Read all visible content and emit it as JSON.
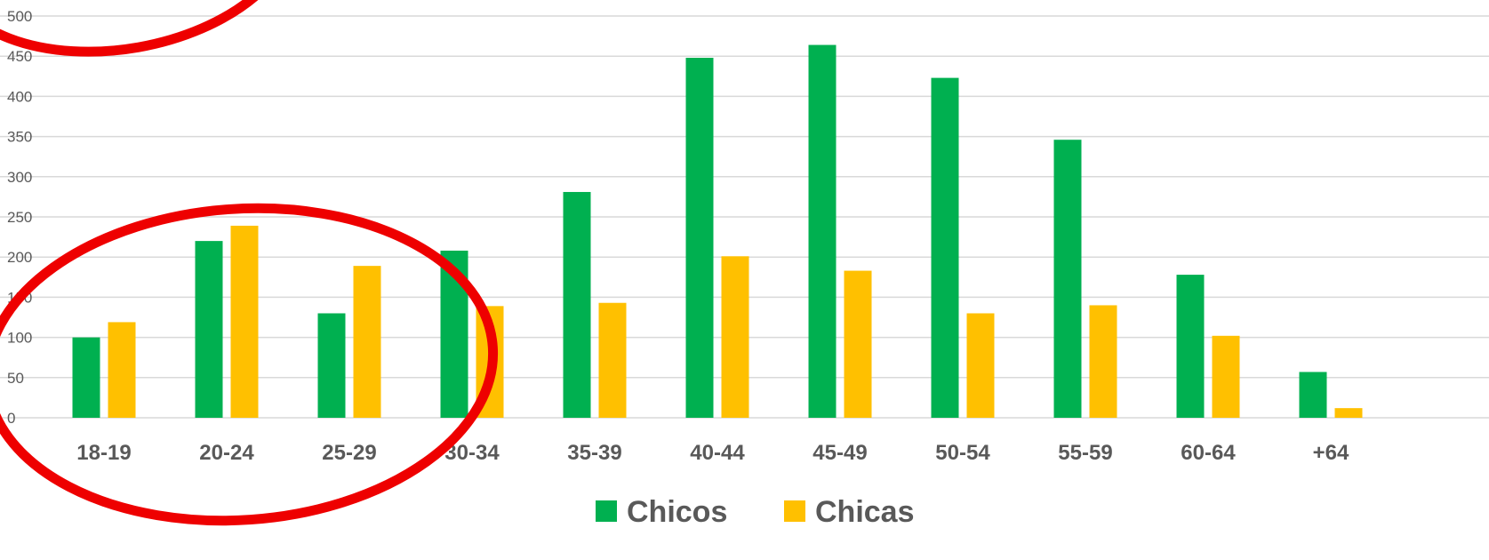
{
  "chart_data": {
    "type": "bar",
    "title": "",
    "xlabel": "",
    "ylabel": "",
    "categories": [
      "18-19",
      "20-24",
      "25-29",
      "30-34",
      "35-39",
      "40-44",
      "45-49",
      "50-54",
      "55-59",
      "60-64",
      "+64"
    ],
    "series": [
      {
        "name": "Chicos",
        "color": "#00b050",
        "values": [
          100,
          220,
          130,
          208,
          281,
          448,
          464,
          423,
          346,
          178,
          57
        ]
      },
      {
        "name": "Chicas",
        "color": "#ffc000",
        "values": [
          119,
          239,
          189,
          139,
          143,
          201,
          183,
          130,
          140,
          102,
          12
        ]
      }
    ],
    "ylim": [
      0,
      500
    ],
    "yticks": [
      "0",
      "50",
      "100",
      "150",
      "200",
      "250",
      "300",
      "350",
      "400",
      "450",
      "500"
    ],
    "grid": true,
    "legend_position": "bottom",
    "annotations": [
      {
        "type": "ellipse",
        "color": "#ee0000",
        "description": "highlight around top of y-axis"
      },
      {
        "type": "ellipse",
        "color": "#ee0000",
        "description": "highlight around 18-19, 20-24, 25-29 groups"
      }
    ]
  }
}
